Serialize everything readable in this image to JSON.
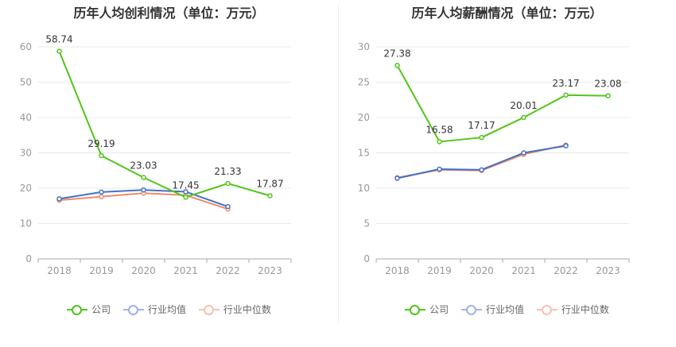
{
  "colors": {
    "company": "#52c41a",
    "industry_avg": "#4472c4",
    "industry_median": "#f08c6b"
  },
  "legend": {
    "company": "公司",
    "industry_avg": "行业均值",
    "industry_median": "行业中位数"
  },
  "chart_data": [
    {
      "type": "line",
      "title": "历年人均创利情况（单位：万元）",
      "categories": [
        "2018",
        "2019",
        "2020",
        "2021",
        "2022",
        "2023"
      ],
      "ylim": [
        0,
        60
      ],
      "yticks": [
        "0",
        "10",
        "20",
        "30",
        "40",
        "50",
        "60"
      ],
      "grid": true,
      "legend_position": "bottom",
      "series": [
        {
          "name": "公司",
          "values": [
            58.74,
            29.19,
            23.03,
            17.45,
            21.33,
            17.87
          ],
          "labels": [
            "58.74",
            "29.19",
            "23.03",
            "17.45",
            "21.33",
            "17.87"
          ]
        },
        {
          "name": "行业均值",
          "values": [
            17.0,
            18.9,
            19.5,
            19.0,
            14.8,
            null
          ]
        },
        {
          "name": "行业中位数",
          "values": [
            16.6,
            17.6,
            18.6,
            18.0,
            14.1,
            null
          ]
        }
      ]
    },
    {
      "type": "line",
      "title": "历年人均薪酬情况（单位：万元）",
      "categories": [
        "2018",
        "2019",
        "2020",
        "2021",
        "2022",
        "2023"
      ],
      "ylim": [
        0,
        30
      ],
      "yticks": [
        "0",
        "5",
        "10",
        "15",
        "20",
        "25",
        "30"
      ],
      "grid": true,
      "legend_position": "bottom",
      "series": [
        {
          "name": "公司",
          "values": [
            27.38,
            16.58,
            17.17,
            20.01,
            23.17,
            23.08
          ],
          "labels": [
            "27.38",
            "16.58",
            "17.17",
            "20.01",
            "23.17",
            "23.08"
          ]
        },
        {
          "name": "行业均值",
          "values": [
            11.4,
            12.7,
            12.6,
            15.0,
            16.0,
            null
          ]
        },
        {
          "name": "行业中位数",
          "values": [
            11.5,
            12.6,
            12.5,
            14.8,
            16.1,
            null
          ]
        }
      ]
    }
  ]
}
